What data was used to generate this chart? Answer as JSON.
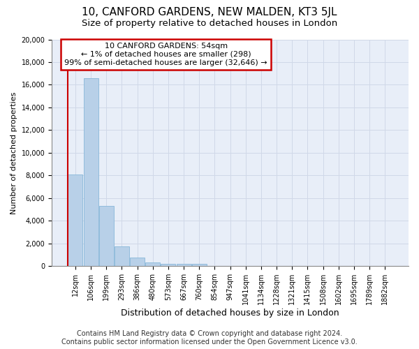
{
  "title": "10, CANFORD GARDENS, NEW MALDEN, KT3 5JL",
  "subtitle": "Size of property relative to detached houses in London",
  "xlabel": "Distribution of detached houses by size in London",
  "ylabel": "Number of detached properties",
  "categories": [
    "12sqm",
    "106sqm",
    "199sqm",
    "293sqm",
    "386sqm",
    "480sqm",
    "573sqm",
    "667sqm",
    "760sqm",
    "854sqm",
    "947sqm",
    "1041sqm",
    "1134sqm",
    "1228sqm",
    "1321sqm",
    "1415sqm",
    "1508sqm",
    "1602sqm",
    "1695sqm",
    "1789sqm",
    "1882sqm"
  ],
  "values": [
    8100,
    16600,
    5300,
    1750,
    750,
    350,
    200,
    175,
    175,
    0,
    0,
    0,
    0,
    0,
    0,
    0,
    0,
    0,
    0,
    0,
    0
  ],
  "bar_color": "#b8d0e8",
  "bar_edge_color": "#7aafd4",
  "annotation_text": "10 CANFORD GARDENS: 54sqm\n← 1% of detached houses are smaller (298)\n99% of semi-detached houses are larger (32,646) →",
  "annotation_box_color": "#ffffff",
  "annotation_box_edge_color": "#cc0000",
  "vline_color": "#cc0000",
  "ylim": [
    0,
    20000
  ],
  "yticks": [
    0,
    2000,
    4000,
    6000,
    8000,
    10000,
    12000,
    14000,
    16000,
    18000,
    20000
  ],
  "footer_line1": "Contains HM Land Registry data © Crown copyright and database right 2024.",
  "footer_line2": "Contains public sector information licensed under the Open Government Licence v3.0.",
  "grid_color": "#d0d8e8",
  "bg_color": "#e8eef8",
  "fig_bg_color": "#ffffff",
  "title_fontsize": 11,
  "subtitle_fontsize": 9.5,
  "xlabel_fontsize": 9,
  "ylabel_fontsize": 8,
  "tick_fontsize": 7,
  "annotation_fontsize": 8,
  "footer_fontsize": 7
}
